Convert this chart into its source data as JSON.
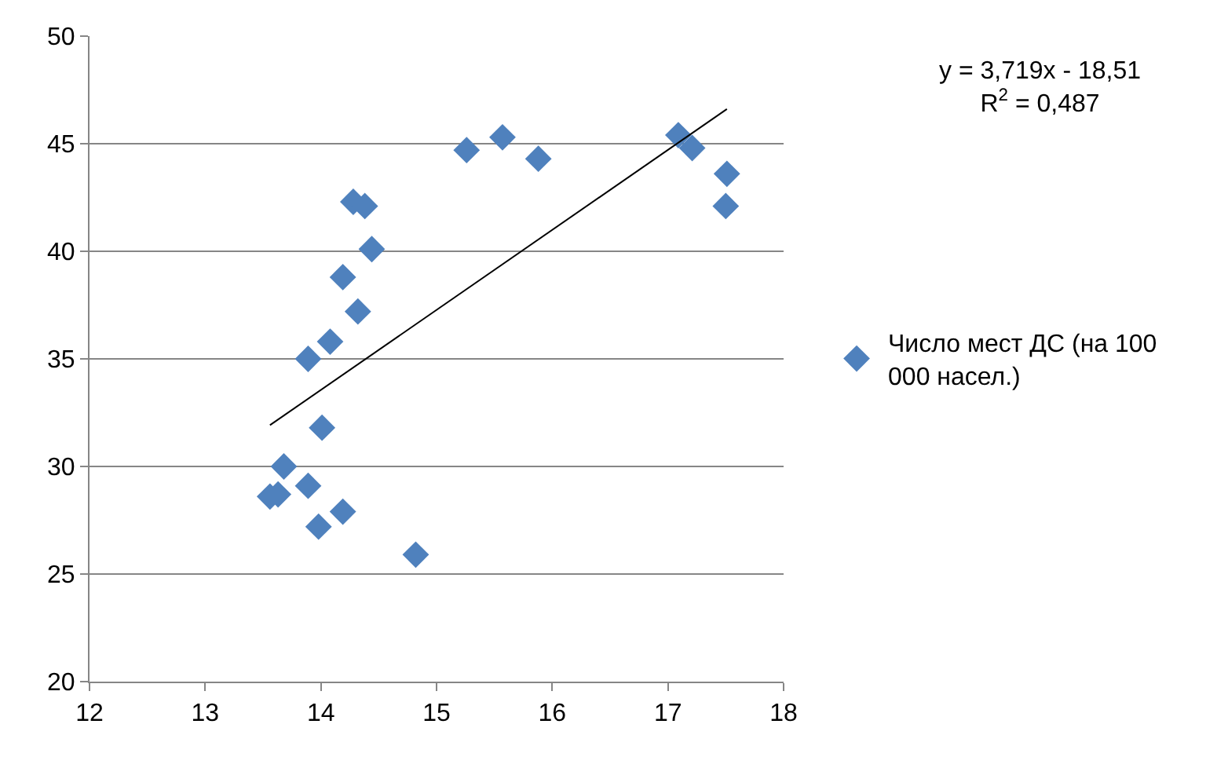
{
  "chart_data": {
    "type": "scatter",
    "xlim": [
      12,
      18
    ],
    "xticks": [
      12,
      13,
      14,
      15,
      16,
      17,
      18
    ],
    "ylim": [
      20,
      50
    ],
    "yticks": [
      20,
      25,
      30,
      35,
      40,
      45,
      50
    ],
    "grid": "y",
    "legend": "right",
    "marker": "diamond",
    "annotations": [
      "y = 3,719x - 18,51",
      "R$^{2}$ = 0,487"
    ],
    "series": [
      {
        "name": "Число мест ДС (на 100 000 насел.)",
        "color": "#4f81bd",
        "x": [
          13.56,
          13.63,
          13.68,
          13.89,
          13.98,
          14.19,
          14.01,
          13.89,
          14.08,
          14.32,
          14.19,
          14.44,
          14.28,
          14.38,
          14.82,
          15.26,
          15.57,
          15.88,
          17.09,
          17.21,
          17.51,
          17.5
        ],
        "values": [
          28.6,
          28.7,
          30.0,
          29.1,
          27.2,
          27.9,
          31.8,
          35.0,
          35.8,
          37.2,
          38.8,
          40.1,
          42.3,
          42.1,
          25.9,
          44.7,
          45.3,
          44.3,
          45.4,
          44.8,
          43.6,
          42.1
        ]
      },
      {
        "type": "line",
        "color": "#000000",
        "marker": "none",
        "x": [
          13.56,
          17.51
        ],
        "values": [
          31.92,
          46.61
        ]
      }
    ]
  }
}
